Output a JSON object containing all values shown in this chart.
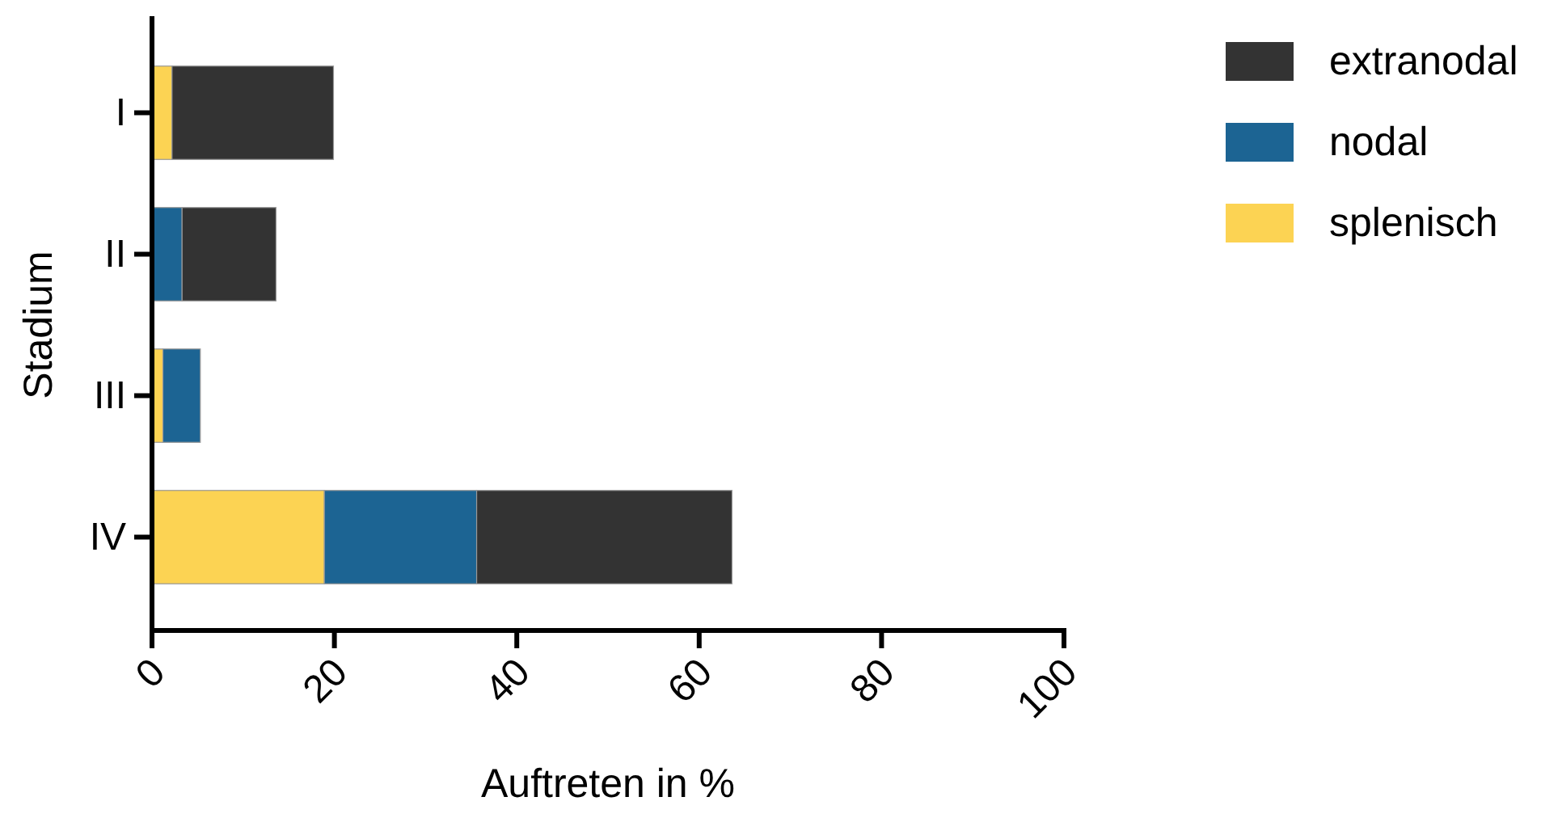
{
  "chart_data": {
    "type": "bar",
    "orientation": "horizontal",
    "stacked": true,
    "xlabel": "Auftreten in %",
    "ylabel": "Stadium",
    "categories": [
      "I",
      "II",
      "III",
      "IV"
    ],
    "series": [
      {
        "name": "splenisch",
        "color": "#fcd353",
        "values": [
          2.2,
          null,
          1.2,
          18.9
        ]
      },
      {
        "name": "nodal",
        "color": "#1c6493",
        "values": [
          null,
          3.3,
          4.1,
          16.7
        ]
      },
      {
        "name": "extranodal",
        "color": "#333333",
        "values": [
          17.7,
          10.3,
          null,
          28.0
        ]
      }
    ],
    "xlim": [
      0,
      100
    ],
    "xticks": [
      0,
      20,
      40,
      60,
      80,
      100
    ],
    "grid": false,
    "legend": "right"
  }
}
